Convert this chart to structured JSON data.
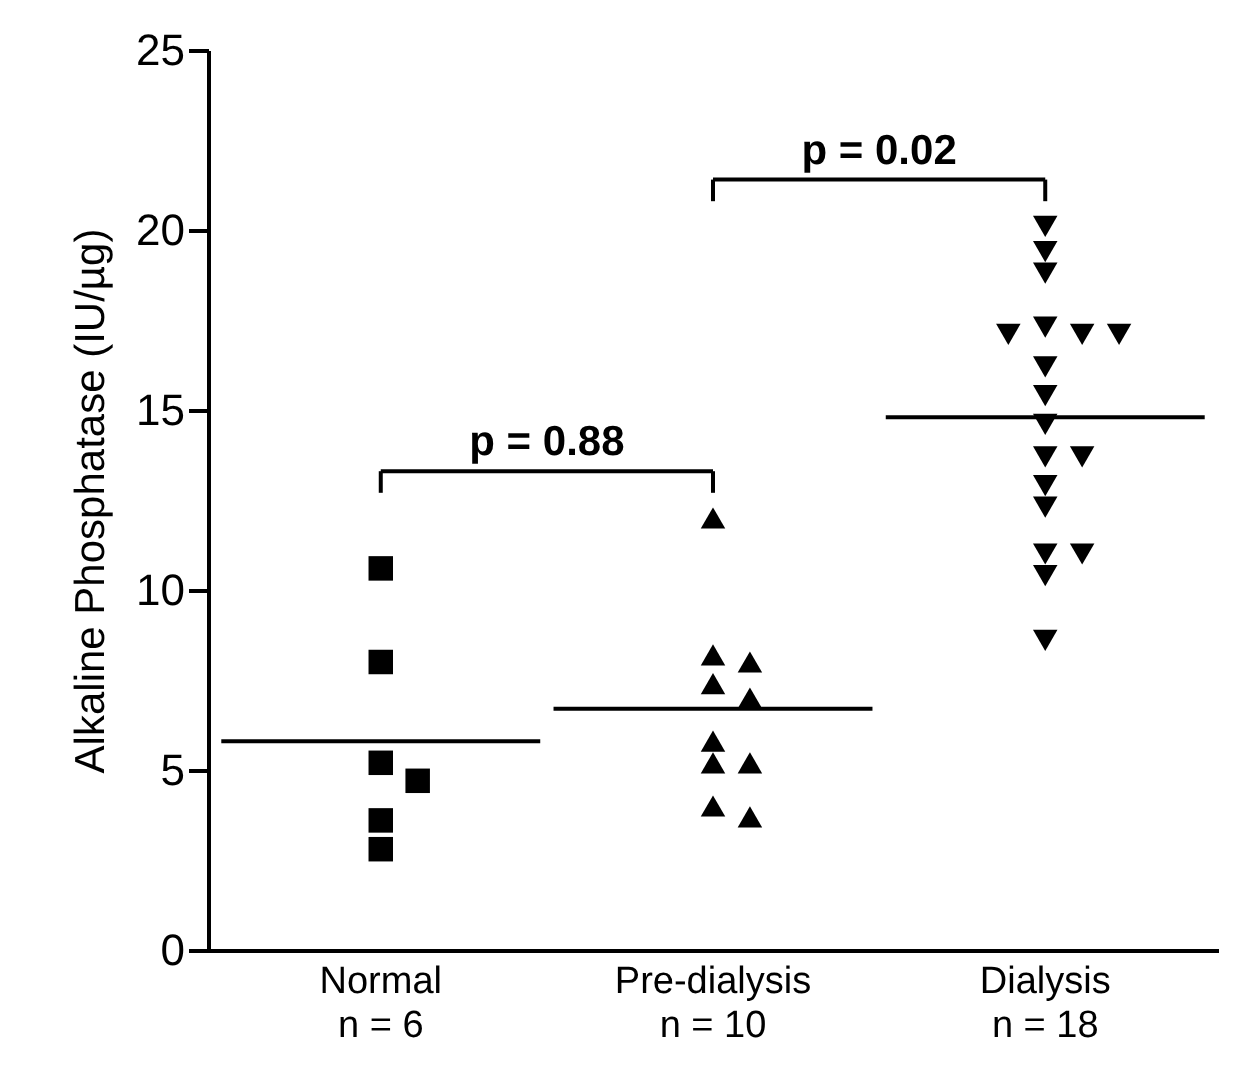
{
  "chart_data": {
    "type": "scatter",
    "ylabel": "Alkaline Phosphatase (IU/µg)",
    "categories": [
      "Normal\nn = 6",
      "Pre-dialysis\nn = 10",
      "Dialysis\nn = 18"
    ],
    "ylim": [
      0,
      25
    ],
    "yticks": [
      0,
      5,
      10,
      15,
      20,
      25
    ],
    "grid": false,
    "series": [
      {
        "marker": "square",
        "color": "#000000",
        "x": [
          "Normal\nn = 6",
          "Normal\nn = 6",
          "Normal\nn = 6",
          "Normal\nn = 6",
          "Normal\nn = 6",
          "Normal\nn = 6"
        ],
        "values": [
          10.6,
          8.0,
          5.2,
          4.7,
          3.6,
          2.8
        ]
      },
      {
        "marker": "triangle",
        "color": "#000000",
        "x": [
          "Pre-dialysis\nn = 10",
          "Pre-dialysis\nn = 10",
          "Pre-dialysis\nn = 10",
          "Pre-dialysis\nn = 10",
          "Pre-dialysis\nn = 10",
          "Pre-dialysis\nn = 10",
          "Pre-dialysis\nn = 10",
          "Pre-dialysis\nn = 10",
          "Pre-dialysis\nn = 10",
          "Pre-dialysis\nn = 10"
        ],
        "values": [
          12.0,
          8.2,
          8.0,
          7.4,
          7.0,
          5.8,
          5.2,
          5.2,
          4.0,
          3.7
        ]
      },
      {
        "marker": "triangle-down",
        "color": "#000000",
        "x": [
          "Dialysis\nn = 18",
          "Dialysis\nn = 18",
          "Dialysis\nn = 18",
          "Dialysis\nn = 18",
          "Dialysis\nn = 18",
          "Dialysis\nn = 18",
          "Dialysis\nn = 18",
          "Dialysis\nn = 18",
          "Dialysis\nn = 18",
          "Dialysis\nn = 18",
          "Dialysis\nn = 18",
          "Dialysis\nn = 18",
          "Dialysis\nn = 18",
          "Dialysis\nn = 18",
          "Dialysis\nn = 18",
          "Dialysis\nn = 18",
          "Dialysis\nn = 18",
          "Dialysis\nn = 18"
        ],
        "values": [
          20.1,
          19.4,
          18.8,
          17.3,
          17.1,
          17.1,
          17.1,
          16.2,
          15.4,
          14.6,
          13.7,
          13.7,
          12.9,
          12.3,
          11.0,
          11.0,
          10.4,
          8.6
        ]
      }
    ],
    "ref_lines": [
      {
        "axis": "y",
        "value": 5.8,
        "color": "#000000"
      },
      {
        "axis": "y",
        "value": 6.7,
        "color": "#000000"
      },
      {
        "axis": "y",
        "value": 14.8,
        "color": "#000000"
      }
    ],
    "annotations": [
      "p = 0.88",
      "p = 0.02"
    ]
  }
}
